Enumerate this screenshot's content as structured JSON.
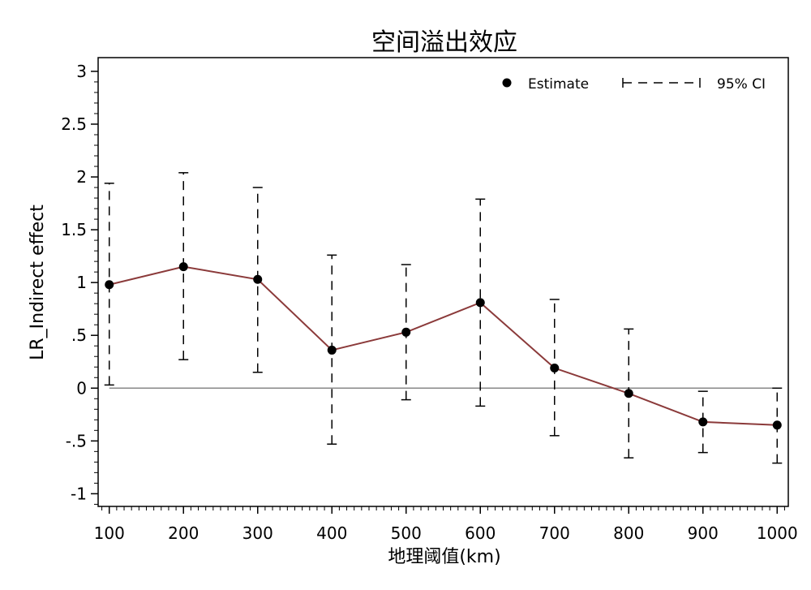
{
  "chart_data": {
    "type": "line",
    "title": "空间溢出效应",
    "xlabel": "地理阈值(km)",
    "ylabel": "LR_Indirect effect",
    "x": [
      100,
      200,
      300,
      400,
      500,
      600,
      700,
      800,
      900,
      1000
    ],
    "x_tick_labels": [
      "100",
      "200",
      "300",
      "400",
      "500",
      "600",
      "700",
      "800",
      "900",
      "1000"
    ],
    "y_tick_values": [
      -1,
      -0.5,
      0,
      0.5,
      1,
      1.5,
      2,
      2.5,
      3
    ],
    "y_tick_labels": [
      "-1",
      "-.5",
      "0",
      ".5",
      "1",
      "1.5",
      "2",
      "2.5",
      "3"
    ],
    "xlim": [
      85,
      1015
    ],
    "ylim": [
      -1.12,
      3.13
    ],
    "reference_line_y": 0,
    "series": [
      {
        "name": "Estimate",
        "values": [
          0.98,
          1.15,
          1.03,
          0.36,
          0.53,
          0.81,
          0.19,
          -0.05,
          -0.32,
          -0.35
        ],
        "color": "#8b3a3a"
      },
      {
        "name": "95% CI",
        "lower": [
          0.03,
          0.27,
          0.15,
          -0.53,
          -0.11,
          -0.17,
          -0.45,
          -0.66,
          -0.61,
          -0.71
        ],
        "upper": [
          1.94,
          2.04,
          1.9,
          1.26,
          1.17,
          1.79,
          0.84,
          0.56,
          -0.03,
          0.0
        ],
        "color": "#000000"
      }
    ],
    "legend_position": "top-right",
    "grid": false
  }
}
